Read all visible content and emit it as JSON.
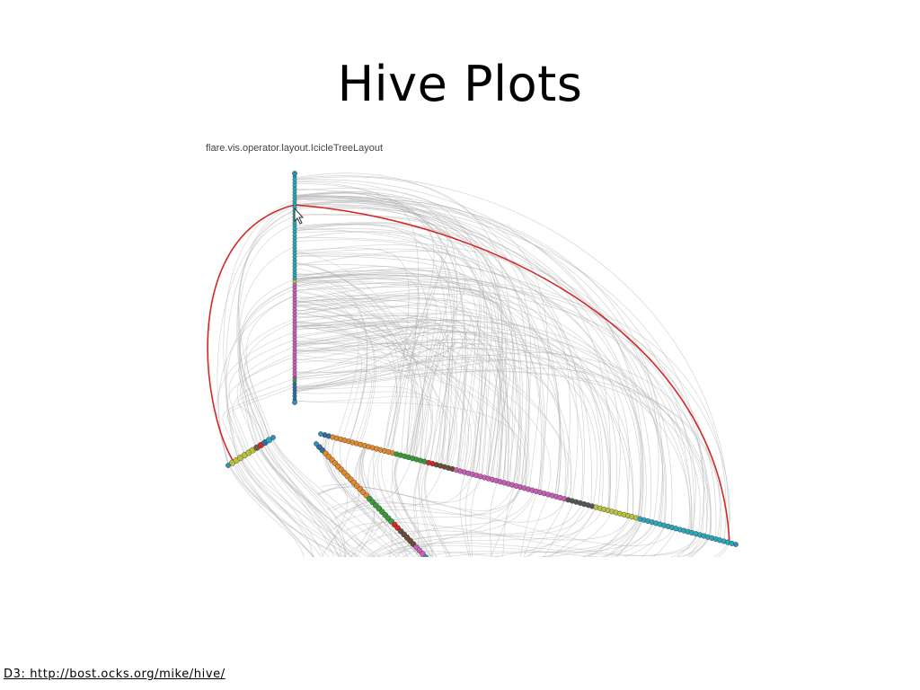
{
  "slide": {
    "title": "Hive Plots",
    "source_link": "D3: http://bost.ocks.org/mike/hive/"
  },
  "figure": {
    "caption": "flare.vis.operator.layout.IcicleTreeLayout",
    "link_color": "#b0b0b0",
    "highlight_color": "#d62728",
    "axes": [
      {
        "name": "vertical-axis",
        "segments": [
          {
            "color": "#2aa7b8",
            "count": 34
          },
          {
            "color": "#b9c23a",
            "count": 1
          },
          {
            "color": "#c75fb5",
            "count": 30
          },
          {
            "color": "#8e5aa8",
            "count": 1
          },
          {
            "color": "#3a9a3a",
            "count": 1
          },
          {
            "color": "#2f6ea3",
            "count": 6
          }
        ]
      },
      {
        "name": "left-axis",
        "segments": [
          {
            "color": "#b9c23a",
            "count": 6
          },
          {
            "color": "#7b5a3a",
            "count": 1
          },
          {
            "color": "#d62728",
            "count": 1
          },
          {
            "color": "#2f6ea3",
            "count": 1
          },
          {
            "color": "#2aa7b8",
            "count": 1
          }
        ]
      },
      {
        "name": "right-axis",
        "segments": [
          {
            "color": "#2f6ea3",
            "count": 2
          },
          {
            "color": "#e08a2c",
            "count": 16
          },
          {
            "color": "#3a9a3a",
            "count": 8
          },
          {
            "color": "#d62728",
            "count": 2
          },
          {
            "color": "#6b4c3b",
            "count": 5
          },
          {
            "color": "#c75fb5",
            "count": 28
          },
          {
            "color": "#555555",
            "count": 7
          },
          {
            "color": "#b9c23a",
            "count": 11
          },
          {
            "color": "#2aa7b8",
            "count": 24
          }
        ]
      },
      {
        "name": "lower-axis",
        "segments": [
          {
            "color": "#2f6ea3",
            "count": 2
          },
          {
            "color": "#e08a2c",
            "count": 14
          },
          {
            "color": "#3a9a3a",
            "count": 8
          },
          {
            "color": "#d62728",
            "count": 2
          },
          {
            "color": "#6b4c3b",
            "count": 5
          },
          {
            "color": "#c75fb5",
            "count": 3
          }
        ]
      }
    ]
  }
}
